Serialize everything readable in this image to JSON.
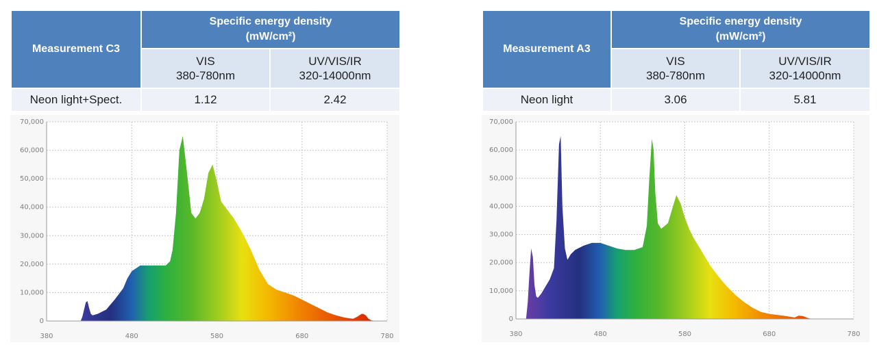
{
  "panels": [
    {
      "measurement": "Measurement C3",
      "header": "Specific energy density",
      "unit": "(mW/cm²)",
      "col1": {
        "name": "VIS",
        "range": "380-780nm"
      },
      "col2": {
        "name": "UV/VIS/IR",
        "range": "320-14000nm"
      },
      "row": {
        "label": "Neon light+Spect.",
        "vis": "1.12",
        "uvvisir": "2.42"
      }
    },
    {
      "measurement": "Measurement A3",
      "header": "Specific energy density",
      "unit": "(mW/cm²)",
      "col1": {
        "name": "VIS",
        "range": "380-780nm"
      },
      "col2": {
        "name": "UV/VIS/IR",
        "range": "320-14000nm"
      },
      "row": {
        "label": "Neon light",
        "vis": "3.06",
        "uvvisir": "5.81"
      }
    }
  ],
  "chart_data": [
    {
      "type": "area",
      "x_ticks": [
        "380",
        "480",
        "580",
        "680",
        "780"
      ],
      "y_ticks": [
        "0",
        "10,000",
        "20,000",
        "30,000",
        "40,000",
        "50,000",
        "60,000",
        "70,000"
      ],
      "xlim": [
        380,
        780
      ],
      "ylim": [
        0,
        70000
      ],
      "grid": true,
      "x": [
        420,
        422,
        424,
        426,
        428,
        430,
        432,
        434,
        440,
        450,
        460,
        470,
        475,
        480,
        490,
        500,
        510,
        520,
        525,
        528,
        532,
        536,
        540,
        545,
        550,
        555,
        560,
        565,
        570,
        575,
        580,
        585,
        590,
        600,
        610,
        620,
        630,
        640,
        650,
        660,
        670,
        680,
        690,
        700,
        710,
        720,
        730,
        740,
        745,
        750,
        752,
        755,
        758,
        762,
        770
      ],
      "y": [
        0,
        1500,
        4000,
        6500,
        7000,
        4500,
        2500,
        2000,
        2500,
        4000,
        7500,
        11500,
        15000,
        17500,
        19500,
        19500,
        19500,
        19500,
        21000,
        25000,
        38000,
        60000,
        65000,
        52000,
        38000,
        36000,
        38000,
        43000,
        52000,
        55000,
        49000,
        42000,
        40000,
        36000,
        31000,
        25000,
        18000,
        13000,
        11000,
        10000,
        9000,
        7500,
        6000,
        4500,
        3000,
        2000,
        1200,
        800,
        1500,
        2500,
        2500,
        2000,
        800,
        200,
        0
      ]
    },
    {
      "type": "area",
      "x_ticks": [
        "380",
        "480",
        "580",
        "680",
        "780"
      ],
      "y_ticks": [
        "0",
        "10,000",
        "20,000",
        "30,000",
        "40,000",
        "50,000",
        "60,000",
        "70,000"
      ],
      "xlim": [
        380,
        780
      ],
      "ylim": [
        0,
        70000
      ],
      "grid": true,
      "x": [
        392,
        394,
        396,
        398,
        400,
        402,
        404,
        406,
        410,
        415,
        420,
        425,
        428,
        431,
        433,
        435,
        438,
        441,
        445,
        450,
        460,
        470,
        480,
        490,
        500,
        510,
        520,
        530,
        535,
        538,
        541,
        543,
        545,
        548,
        552,
        556,
        560,
        565,
        570,
        575,
        580,
        585,
        590,
        600,
        610,
        620,
        630,
        640,
        650,
        660,
        670,
        680,
        690,
        700,
        710,
        715,
        720,
        725,
        730,
        735
      ],
      "y": [
        0,
        6000,
        16000,
        25000,
        22000,
        12000,
        8000,
        7500,
        9000,
        11500,
        14000,
        18000,
        35000,
        62000,
        65000,
        40000,
        25000,
        21000,
        23000,
        24500,
        26000,
        27000,
        27000,
        26000,
        25000,
        24500,
        24500,
        25500,
        33000,
        50000,
        64000,
        60000,
        45000,
        34000,
        32000,
        33000,
        34000,
        39000,
        44000,
        41000,
        36000,
        32000,
        29000,
        24000,
        19000,
        15000,
        11500,
        8500,
        6000,
        4000,
        2500,
        1800,
        1400,
        1000,
        500,
        1200,
        1000,
        400,
        0,
        0
      ]
    }
  ]
}
